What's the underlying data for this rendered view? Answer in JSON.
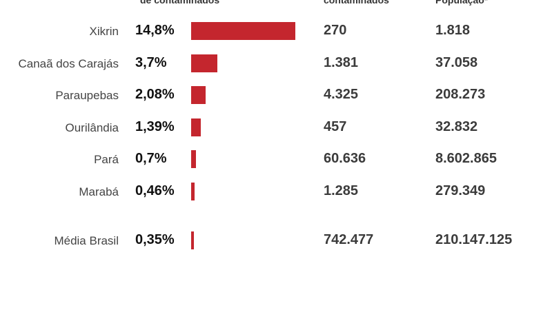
{
  "headers": {
    "pct": "de contaminados",
    "contaminados": "contaminados",
    "populacao": "População*"
  },
  "colors": {
    "bar": "#c4262e"
  },
  "chart_data": {
    "type": "bar",
    "categories": [
      "Xikrin",
      "Canaã dos Carajás",
      "Paraupebas",
      "Ourilândia",
      "Pará",
      "Marabá",
      "Média Brasil"
    ],
    "values": [
      14.8,
      3.7,
      2.08,
      1.39,
      0.7,
      0.46,
      0.35
    ],
    "labels": [
      "14,8%",
      "3,7%",
      "2,08%",
      "1,39%",
      "0,7%",
      "0,46%",
      "0,35%"
    ],
    "contaminados": [
      "270",
      "1.381",
      "4.325",
      "457",
      "60.636",
      "1.285",
      "742.477"
    ],
    "populacao": [
      "1.818",
      "37.058",
      "208.273",
      "32.832",
      "8.602.865",
      "279.349",
      "210.147.125"
    ],
    "xlim": [
      0,
      14.8
    ]
  }
}
